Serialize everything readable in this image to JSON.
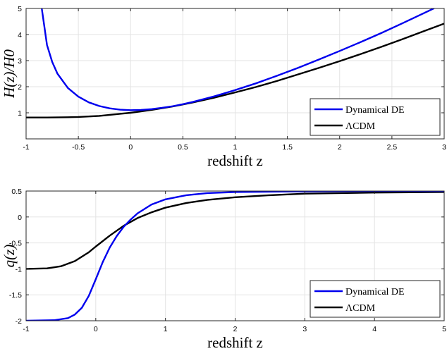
{
  "chart_data": [
    {
      "type": "line",
      "xlabel": "redshift z",
      "ylabel": "H(z)/H0",
      "xlim": [
        -1,
        3
      ],
      "ylim": [
        0,
        5
      ],
      "xticks": [
        "-1",
        "-0.5",
        "0",
        "0.5",
        "1",
        "1.5",
        "2",
        "2.5",
        "3"
      ],
      "yticks": [
        "1",
        "2",
        "3",
        "4",
        "5"
      ],
      "grid": true,
      "legend": "bottom-right",
      "series": [
        {
          "name": "Dynamical DE",
          "color": "#0000ee",
          "x": [
            -0.85,
            -0.8,
            -0.75,
            -0.7,
            -0.6,
            -0.5,
            -0.4,
            -0.3,
            -0.2,
            -0.1,
            0.0,
            0.1,
            0.2,
            0.3,
            0.4,
            0.5,
            0.6,
            0.8,
            1.0,
            1.2,
            1.4,
            1.6,
            1.8,
            2.0,
            2.2,
            2.4,
            2.6,
            2.8,
            2.9
          ],
          "y": [
            5.0,
            3.6,
            2.95,
            2.5,
            1.95,
            1.62,
            1.4,
            1.26,
            1.17,
            1.12,
            1.1,
            1.11,
            1.14,
            1.19,
            1.25,
            1.33,
            1.42,
            1.63,
            1.87,
            2.13,
            2.42,
            2.72,
            3.04,
            3.37,
            3.71,
            4.06,
            4.43,
            4.81,
            5.0
          ]
        },
        {
          "name": "ΛCDM",
          "color": "#000000",
          "x": [
            -1,
            -0.8,
            -0.6,
            -0.5,
            -0.4,
            -0.3,
            -0.2,
            -0.1,
            0.0,
            0.2,
            0.4,
            0.6,
            0.8,
            1.0,
            1.2,
            1.4,
            1.6,
            1.8,
            2.0,
            2.2,
            2.4,
            2.6,
            2.8,
            3.0
          ],
          "y": [
            0.82,
            0.82,
            0.83,
            0.84,
            0.86,
            0.88,
            0.92,
            0.96,
            1.0,
            1.11,
            1.24,
            1.4,
            1.58,
            1.78,
            1.99,
            2.22,
            2.47,
            2.72,
            2.98,
            3.25,
            3.53,
            3.82,
            4.12,
            4.42
          ]
        }
      ]
    },
    {
      "type": "line",
      "xlabel": "redshift z",
      "ylabel": "q(z)",
      "xlim": [
        -1,
        5
      ],
      "ylim": [
        -2,
        0.5
      ],
      "xticks": [
        "-1",
        "0",
        "1",
        "2",
        "3",
        "4",
        "5"
      ],
      "yticks": [
        "-2",
        "-1.5",
        "-1",
        "-0.5",
        "0",
        "0.5"
      ],
      "grid": true,
      "legend": "bottom-right",
      "series": [
        {
          "name": "Dynamical DE",
          "color": "#0000ee",
          "x": [
            -1,
            -0.6,
            -0.4,
            -0.3,
            -0.2,
            -0.1,
            0.0,
            0.1,
            0.2,
            0.3,
            0.4,
            0.5,
            0.6,
            0.8,
            1.0,
            1.3,
            1.6,
            2.0,
            3.0,
            4.0,
            5.0
          ],
          "y": [
            -2.0,
            -1.99,
            -1.95,
            -1.88,
            -1.75,
            -1.52,
            -1.2,
            -0.87,
            -0.59,
            -0.37,
            -0.19,
            -0.05,
            0.07,
            0.24,
            0.34,
            0.42,
            0.46,
            0.48,
            0.495,
            0.5,
            0.5
          ]
        },
        {
          "name": "ΛCDM",
          "color": "#000000",
          "x": [
            -1,
            -0.7,
            -0.5,
            -0.3,
            -0.1,
            0.0,
            0.2,
            0.4,
            0.6,
            0.8,
            1.0,
            1.3,
            1.6,
            2.0,
            2.5,
            3.0,
            4.0,
            5.0
          ],
          "y": [
            -1.0,
            -0.99,
            -0.95,
            -0.85,
            -0.68,
            -0.57,
            -0.36,
            -0.17,
            -0.02,
            0.09,
            0.18,
            0.27,
            0.33,
            0.38,
            0.42,
            0.45,
            0.47,
            0.48
          ]
        }
      ]
    }
  ]
}
